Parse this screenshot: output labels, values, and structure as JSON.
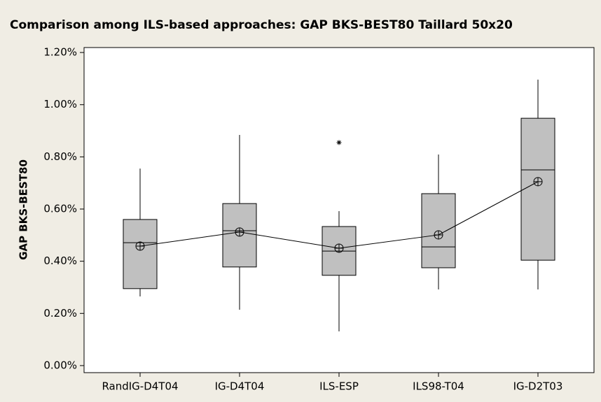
{
  "chart_data": {
    "type": "boxplot",
    "title": "Comparison among ILS-based approaches: GAP BKS-BEST80 Taillard 50x20",
    "y_label": "GAP BKS-BEST80",
    "categories": [
      "RandIG-D4T04",
      "IG-D4T04",
      "ILS-ESP",
      "ILS98-T04",
      "IG-D2T03"
    ],
    "whisker_low": [
      0.265,
      0.214,
      0.131,
      0.292,
      0.292
    ],
    "q1": [
      0.295,
      0.378,
      0.346,
      0.375,
      0.404
    ],
    "median": [
      0.471,
      0.517,
      0.439,
      0.455,
      0.75
    ],
    "q3": [
      0.56,
      0.621,
      0.533,
      0.659,
      0.948
    ],
    "whisker_high": [
      0.755,
      0.884,
      0.592,
      0.809,
      1.096
    ],
    "means": [
      0.458,
      0.512,
      0.45,
      0.501,
      0.705
    ],
    "outliers": [
      [],
      [],
      [
        0.855
      ],
      [],
      []
    ],
    "color": "#c0c0c0",
    "ylim": [
      -0.027,
      1.219
    ],
    "yticks": [
      {
        "value": 0,
        "label": "0.00%"
      },
      {
        "value": 0.2,
        "label": "0.20%"
      },
      {
        "value": 0.4,
        "label": "0.40%"
      },
      {
        "value": 0.6,
        "label": "0.60%"
      },
      {
        "value": 0.8,
        "label": "0.80%"
      },
      {
        "value": 1.0,
        "label": "1.00%"
      },
      {
        "value": 1.2,
        "label": "1.20%"
      }
    ]
  }
}
